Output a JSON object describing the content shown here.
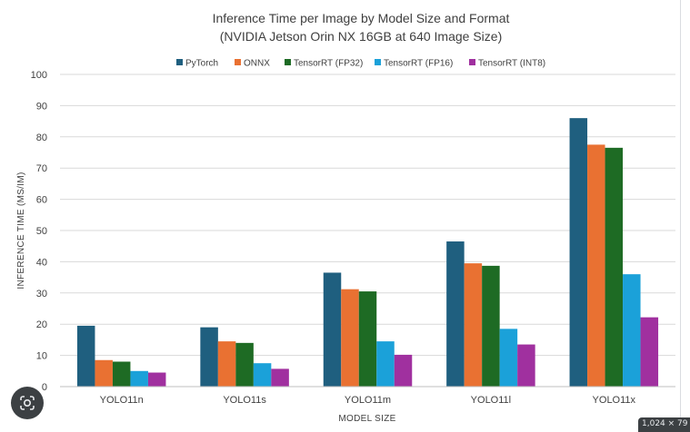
{
  "chart_data": {
    "type": "bar",
    "title": "Inference Time per Image by Model Size and Format",
    "subtitle": "(NVIDIA Jetson Orin NX 16GB at 640 Image Size)",
    "xlabel": "MODEL SIZE",
    "ylabel": "INFERENCE TIME (MS/IM)",
    "ylim": [
      0,
      100
    ],
    "yticks": [
      "0",
      "10",
      "20",
      "30",
      "40",
      "50",
      "60",
      "70",
      "80",
      "90",
      "100"
    ],
    "legend_position": "top",
    "grid": true,
    "categories": [
      "YOLO11n",
      "YOLO11s",
      "YOLO11m",
      "YOLO11l",
      "YOLO11x"
    ],
    "series": [
      {
        "name": "PyTorch",
        "color": "#1f5f7f",
        "values": [
          19.5,
          19.0,
          36.5,
          46.5,
          86.0
        ]
      },
      {
        "name": "ONNX",
        "color": "#e97132",
        "values": [
          8.5,
          14.5,
          31.2,
          39.5,
          77.5
        ]
      },
      {
        "name": "TensorRT (FP32)",
        "color": "#1e6b24",
        "values": [
          8.0,
          14.0,
          30.5,
          38.7,
          76.5
        ]
      },
      {
        "name": "TensorRT (FP16)",
        "color": "#1ba1d9",
        "values": [
          5.0,
          7.5,
          14.5,
          18.5,
          36.0
        ]
      },
      {
        "name": "TensorRT (INT8)",
        "color": "#a0309f",
        "values": [
          4.5,
          5.7,
          10.2,
          13.5,
          22.2
        ]
      }
    ]
  },
  "overlay": {
    "lens_icon": "google-lens-icon",
    "size_tag": "1,024 × 79"
  }
}
